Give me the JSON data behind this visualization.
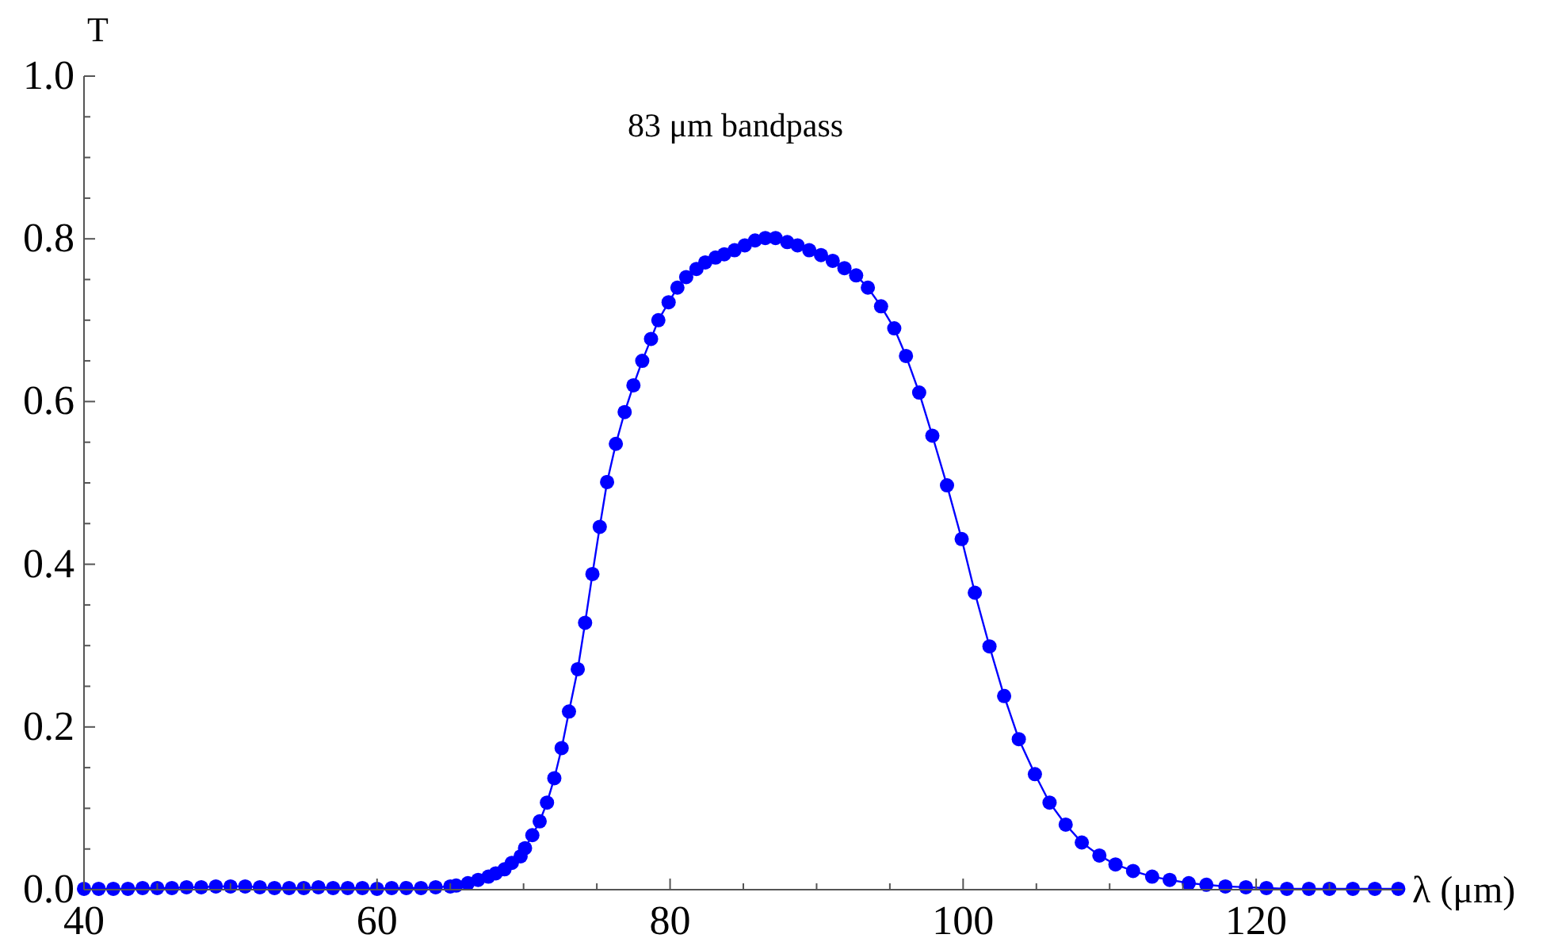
{
  "chart_data": {
    "type": "line",
    "title": "83 μm bandpass",
    "xlabel": "λ (μm)",
    "ylabel": "T",
    "x": [
      40,
      41,
      42,
      43,
      44,
      45,
      46,
      47,
      48,
      49,
      50,
      51,
      52,
      53,
      54,
      55,
      56,
      57,
      58,
      59,
      60,
      61,
      62,
      63,
      64,
      65,
      65.4,
      66.2,
      66.9,
      67.6,
      68.1,
      68.7,
      69.2,
      69.8,
      70.1,
      70.6,
      71.1,
      71.6,
      72.1,
      72.6,
      73.1,
      73.7,
      74.2,
      74.7,
      75.2,
      75.7,
      76.3,
      76.9,
      77.5,
      78.1,
      78.7,
      79.2,
      79.9,
      80.5,
      81.1,
      81.8,
      82.4,
      83.1,
      83.7,
      84.4,
      85.1,
      85.8,
      86.5,
      87.2,
      88.0,
      88.7,
      89.5,
      90.3,
      91.1,
      91.9,
      92.7,
      93.5,
      94.4,
      95.3,
      96.1,
      97.0,
      97.9,
      98.9,
      99.9,
      100.8,
      101.8,
      102.8,
      103.8,
      104.9,
      105.9,
      107.0,
      108.1,
      109.3,
      110.4,
      111.6,
      112.9,
      114.1,
      115.4,
      116.6,
      117.9,
      119.3,
      120.7,
      122.1,
      123.6,
      125.0,
      126.6,
      128.1,
      129.7
    ],
    "series": [
      {
        "color": "#0000ff",
        "values": [
          0.001,
          0.001,
          0.001,
          0.001,
          0.002,
          0.002,
          0.002,
          0.003,
          0.003,
          0.004,
          0.004,
          0.004,
          0.003,
          0.002,
          0.002,
          0.002,
          0.003,
          0.002,
          0.002,
          0.002,
          0.001,
          0.002,
          0.002,
          0.002,
          0.003,
          0.004,
          0.005,
          0.008,
          0.012,
          0.016,
          0.02,
          0.025,
          0.033,
          0.041,
          0.051,
          0.067,
          0.084,
          0.107,
          0.137,
          0.174,
          0.219,
          0.271,
          0.328,
          0.388,
          0.446,
          0.501,
          0.548,
          0.587,
          0.62,
          0.65,
          0.677,
          0.7,
          0.722,
          0.74,
          0.753,
          0.763,
          0.771,
          0.777,
          0.781,
          0.786,
          0.792,
          0.798,
          0.801,
          0.801,
          0.796,
          0.792,
          0.786,
          0.78,
          0.773,
          0.764,
          0.755,
          0.74,
          0.717,
          0.69,
          0.656,
          0.611,
          0.558,
          0.497,
          0.431,
          0.365,
          0.299,
          0.238,
          0.185,
          0.142,
          0.107,
          0.08,
          0.058,
          0.042,
          0.031,
          0.023,
          0.016,
          0.012,
          0.008,
          0.006,
          0.004,
          0.003,
          0.002,
          0.001,
          0.001,
          0.001,
          0.001,
          0.001,
          0.001
        ]
      }
    ],
    "xlim": [
      40,
      130
    ],
    "xticks": [
      40,
      {
        "value": 45,
        "label": null
      },
      {
        "value": 50,
        "label": null
      },
      {
        "value": 55,
        "label": null
      },
      60,
      {
        "value": 65,
        "label": null
      },
      {
        "value": 70,
        "label": null
      },
      {
        "value": 75,
        "label": null
      },
      80,
      {
        "value": 85,
        "label": null
      },
      {
        "value": 90,
        "label": null
      },
      {
        "value": 95,
        "label": null
      },
      100,
      {
        "value": 105,
        "label": null
      },
      {
        "value": 110,
        "label": null
      },
      {
        "value": 115,
        "label": null
      },
      120,
      {
        "value": 125,
        "label": null
      }
    ],
    "ylim": [
      0,
      1
    ],
    "yticks": [
      {
        "value": 0,
        "label": "0.0"
      },
      {
        "value": 0.05,
        "label": null
      },
      {
        "value": 0.1,
        "label": null
      },
      {
        "value": 0.15,
        "label": null
      },
      {
        "value": 0.2,
        "label": "0.2"
      },
      {
        "value": 0.25,
        "label": null
      },
      {
        "value": 0.3,
        "label": null
      },
      {
        "value": 0.35,
        "label": null
      },
      {
        "value": 0.4,
        "label": "0.4"
      },
      {
        "value": 0.45,
        "label": null
      },
      {
        "value": 0.5,
        "label": null
      },
      {
        "value": 0.55,
        "label": null
      },
      {
        "value": 0.6,
        "label": "0.6"
      },
      {
        "value": 0.65,
        "label": null
      },
      {
        "value": 0.7,
        "label": null
      },
      {
        "value": 0.75,
        "label": null
      },
      {
        "value": 0.8,
        "label": "0.8"
      },
      {
        "value": 0.85,
        "label": null
      },
      {
        "value": 0.9,
        "label": null
      },
      {
        "value": 0.95,
        "label": null
      },
      {
        "value": 1,
        "label": "1.0"
      }
    ],
    "marker": "circle",
    "line_style": "solid"
  }
}
